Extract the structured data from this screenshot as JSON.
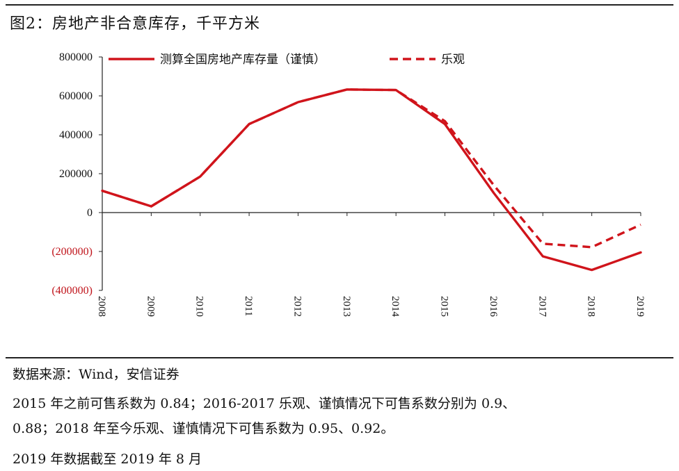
{
  "title": "图2：房地产非合意库存，千平方米",
  "chart_data": {
    "type": "line",
    "x": [
      "2008",
      "2009",
      "2010",
      "2011",
      "2012",
      "2013",
      "2014",
      "2015",
      "2016",
      "2017",
      "2018",
      "2019"
    ],
    "series": [
      {
        "name": "测算全国房地产库存量（谨慎）",
        "style": "solid",
        "color": "#d0141b",
        "values": [
          112000,
          32000,
          185000,
          455000,
          568000,
          633000,
          630000,
          455000,
          100000,
          -225000,
          -295000,
          -205000
        ]
      },
      {
        "name": "乐观",
        "style": "dashed",
        "color": "#d0141b",
        "values": [
          112000,
          32000,
          185000,
          455000,
          568000,
          633000,
          630000,
          470000,
          140000,
          -160000,
          -178000,
          -62000
        ]
      }
    ],
    "yticks": [
      {
        "value": 800000,
        "label": "800000",
        "color": "#111111"
      },
      {
        "value": 600000,
        "label": "600000",
        "color": "#111111"
      },
      {
        "value": 400000,
        "label": "400000",
        "color": "#111111"
      },
      {
        "value": 200000,
        "label": "200000",
        "color": "#111111"
      },
      {
        "value": 0,
        "label": "0",
        "color": "#111111"
      },
      {
        "value": -200000,
        "label": "(200000)",
        "color": "#c0141b"
      },
      {
        "value": -400000,
        "label": "(400000)",
        "color": "#c0141b"
      }
    ],
    "ylim": [
      -400000,
      800000
    ],
    "grid": false,
    "legend_position": "top"
  },
  "footnotes": [
    "数据来源：Wind，安信证券",
    "2015 年之前可售系数为 0.84；2016-2017 乐观、谨慎情况下可售系数分别为 0.9、",
    "0.88；2018 年至今乐观、谨慎情况下可售系数为 0.95、0.92。",
    "2019 年数据截至 2019 年 8 月"
  ]
}
